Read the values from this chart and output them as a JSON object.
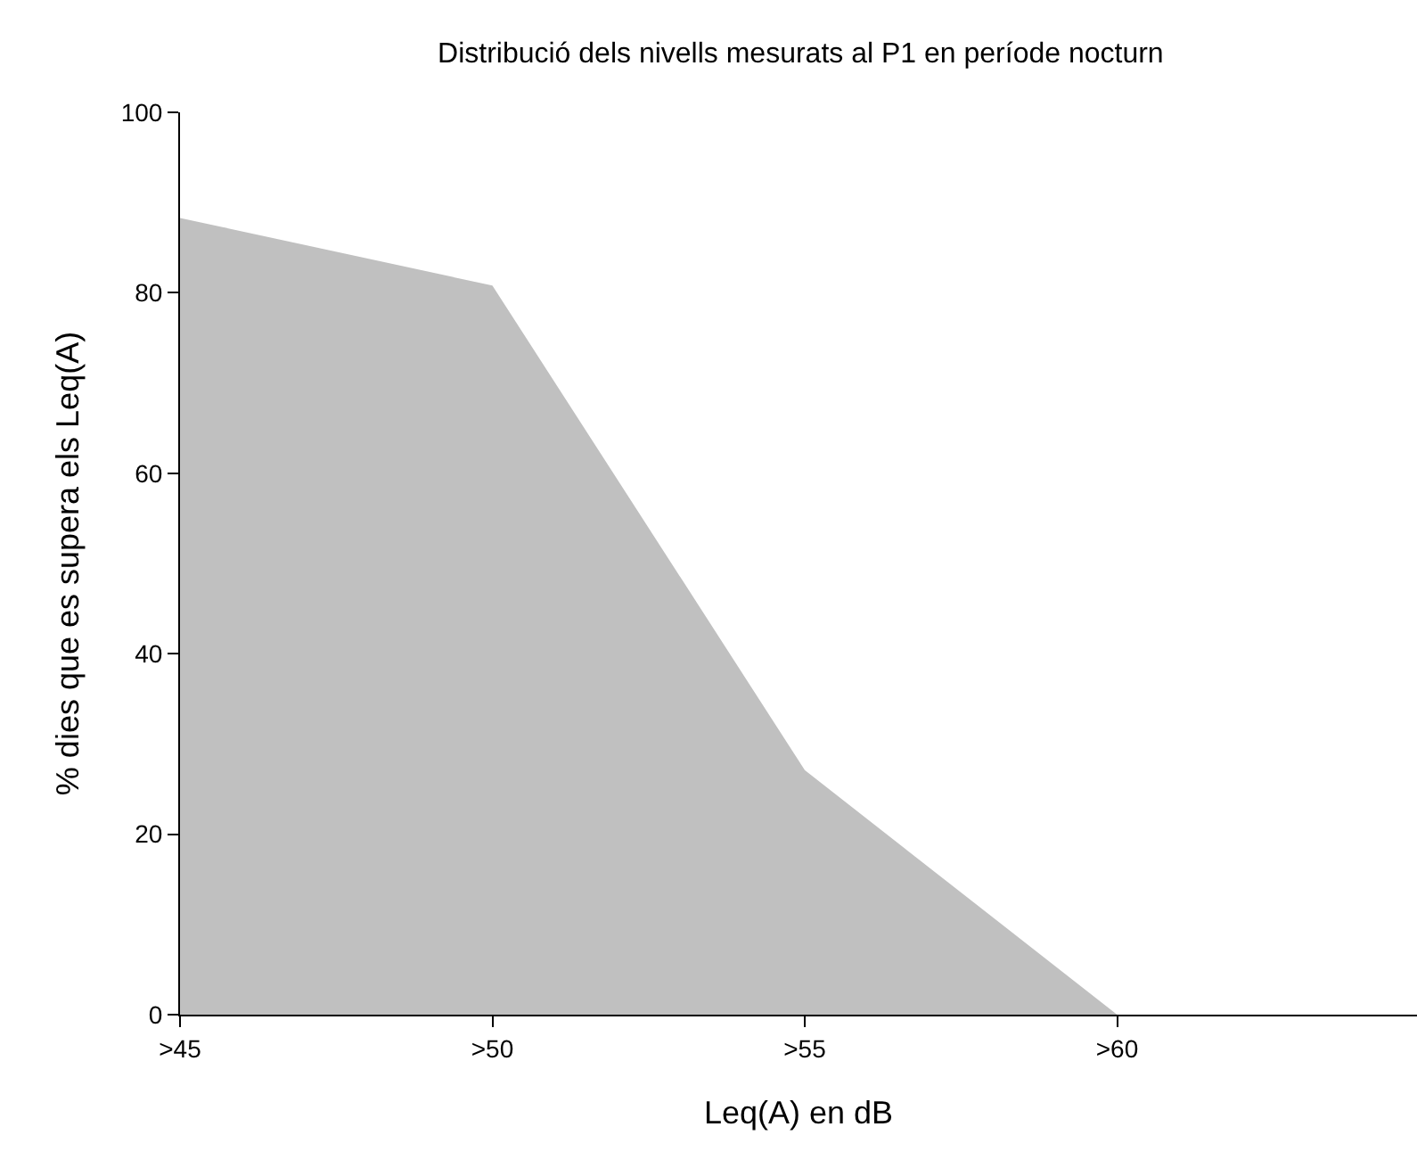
{
  "chart_data": {
    "type": "area",
    "title": "Distribució dels nivells mesurats al P1 en període nocturn",
    "xlabel": "Leq(A) en dB",
    "ylabel": "% dies que es supera els Leq(A)",
    "categories": [
      ">45",
      ">50",
      ">55",
      ">60"
    ],
    "series": [
      {
        "color": "#c0c0c0",
        "values": [
          88.3,
          80.8,
          27.1,
          0
        ]
      }
    ],
    "ylim": [
      0,
      100
    ],
    "yticks": [
      0,
      20,
      40,
      60,
      80,
      100
    ],
    "grid": false
  }
}
